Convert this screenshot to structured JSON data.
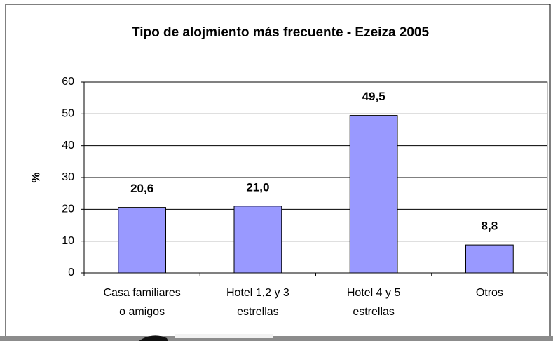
{
  "chart_data": {
    "type": "bar",
    "title": "Tipo de alojmiento más frecuente - Ezeiza 2005",
    "ylabel": "%",
    "categories": [
      "Casa familiares\no amigos",
      "Hotel 1,2 y 3\nestrellas",
      "Hotel 4 y 5\nestrellas",
      "Otros"
    ],
    "values": [
      20.6,
      21.0,
      49.5,
      8.8
    ],
    "value_labels": [
      "20,6",
      "21,0",
      "49,5",
      "8,8"
    ],
    "color": "#9999ff",
    "ylim": [
      0,
      60
    ],
    "yticks": [
      0,
      10,
      20,
      30,
      40,
      50,
      60
    ],
    "grid": true
  }
}
